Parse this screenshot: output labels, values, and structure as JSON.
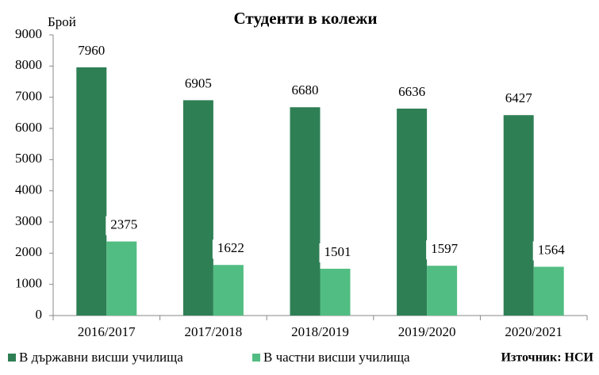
{
  "chart_data": {
    "type": "bar",
    "title": "Студенти в колежи",
    "ylabel": "Брой",
    "source": "Източник: НСИ",
    "categories": [
      "2016/2017",
      "2017/2018",
      "2018/2019",
      "2019/2020",
      "2020/2021"
    ],
    "series": [
      {
        "name": "В държавни висши училища",
        "color": "#2f7f55",
        "values": [
          7960,
          6905,
          6680,
          6636,
          6427
        ]
      },
      {
        "name": "В частни висши училища",
        "color": "#52bd82",
        "values": [
          2375,
          1622,
          1501,
          1597,
          1564
        ]
      }
    ],
    "ylim": [
      0,
      9000
    ],
    "yticks": [
      0,
      1000,
      2000,
      3000,
      4000,
      5000,
      6000,
      7000,
      8000,
      9000
    ],
    "grid": false,
    "legend": "bottom",
    "data_labels": true
  }
}
